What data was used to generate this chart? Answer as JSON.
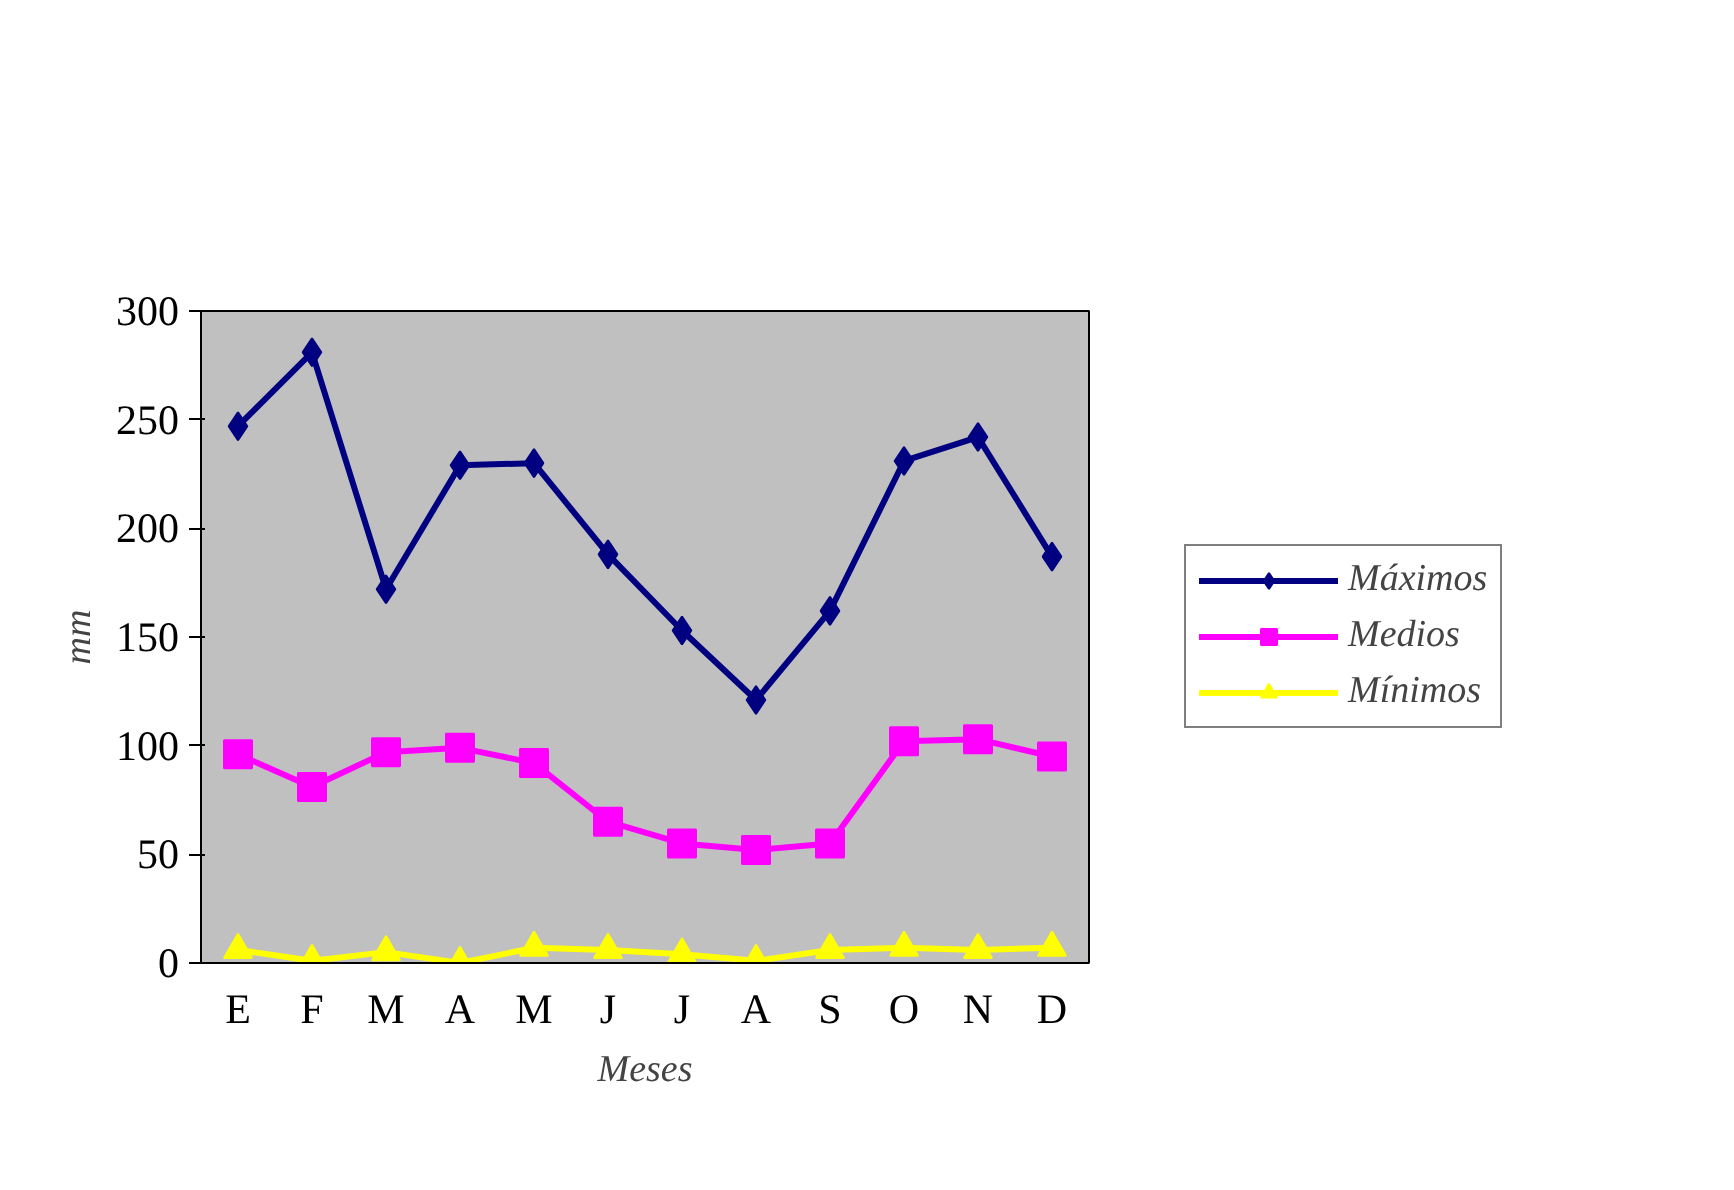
{
  "chart_data": {
    "type": "line",
    "xlabel": "Meses",
    "ylabel": "mm",
    "categories": [
      "E",
      "F",
      "M",
      "A",
      "M",
      "J",
      "J",
      "A",
      "S",
      "O",
      "N",
      "D"
    ],
    "series": [
      {
        "name": "Máximos",
        "color": "#000080",
        "marker": "diamond",
        "values": [
          247,
          281,
          172,
          229,
          230,
          188,
          153,
          121,
          162,
          231,
          242,
          187
        ]
      },
      {
        "name": "Medios",
        "color": "#ff00ff",
        "marker": "square",
        "values": [
          96,
          81,
          97,
          99,
          92,
          65,
          55,
          52,
          55,
          102,
          103,
          95
        ]
      },
      {
        "name": "Mínimos",
        "color": "#ffff00",
        "marker": "triangle",
        "values": [
          6,
          1,
          5,
          0,
          7,
          6,
          4,
          1,
          6,
          7,
          6,
          7
        ]
      }
    ],
    "ylim": [
      0,
      300
    ],
    "yticks": [
      0,
      50,
      100,
      150,
      200,
      250,
      300
    ],
    "grid": false,
    "legend": "right",
    "line_style": "solid"
  }
}
